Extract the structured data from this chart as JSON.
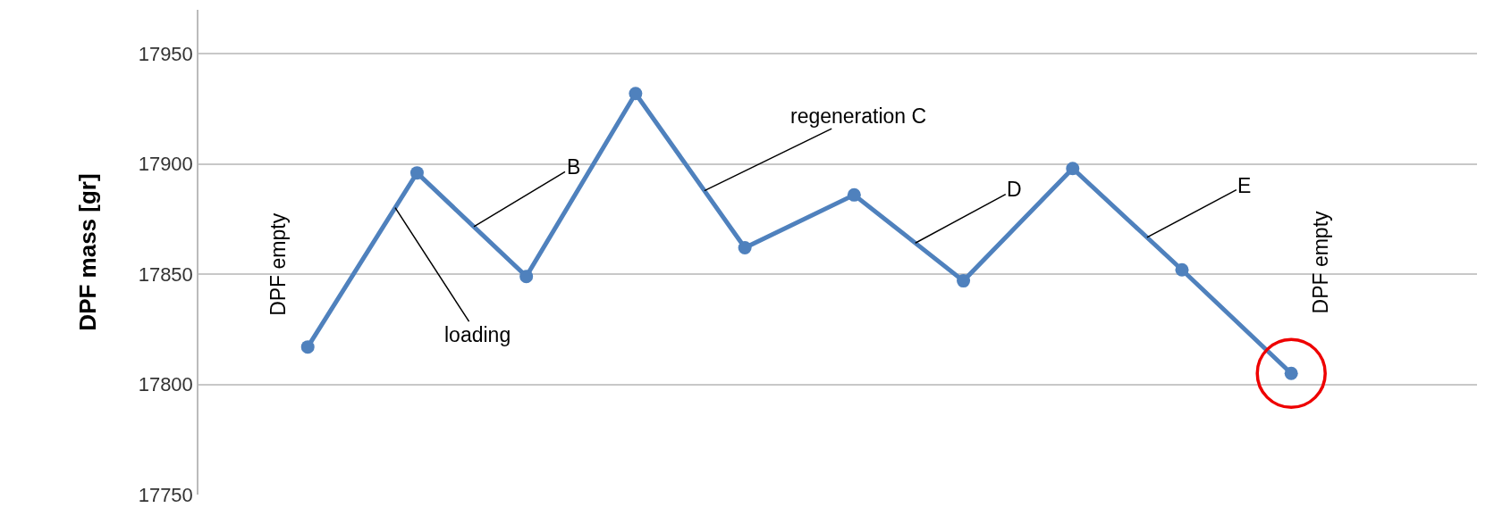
{
  "chart_data": {
    "type": "line",
    "ylabel": "DPF mass [gr]",
    "categories": [
      null,
      null,
      null,
      null,
      null,
      null,
      null,
      null,
      null,
      null
    ],
    "series": [
      {
        "color": "#4f81bd",
        "values": [
          17817,
          17896,
          17849,
          17932,
          17862,
          17886,
          17847,
          17898,
          17852,
          17805
        ]
      }
    ],
    "ylim": [
      17750,
      17970
    ],
    "yticks": [
      17750,
      17800,
      17850,
      17900,
      17950
    ],
    "grid": "y",
    "marker": "circle",
    "line_style": "solid",
    "tick_labels": "y",
    "annotations": [
      "DPF empty",
      "loading",
      "B",
      "regeneration C",
      "D",
      "E",
      "DPF empty"
    ]
  }
}
